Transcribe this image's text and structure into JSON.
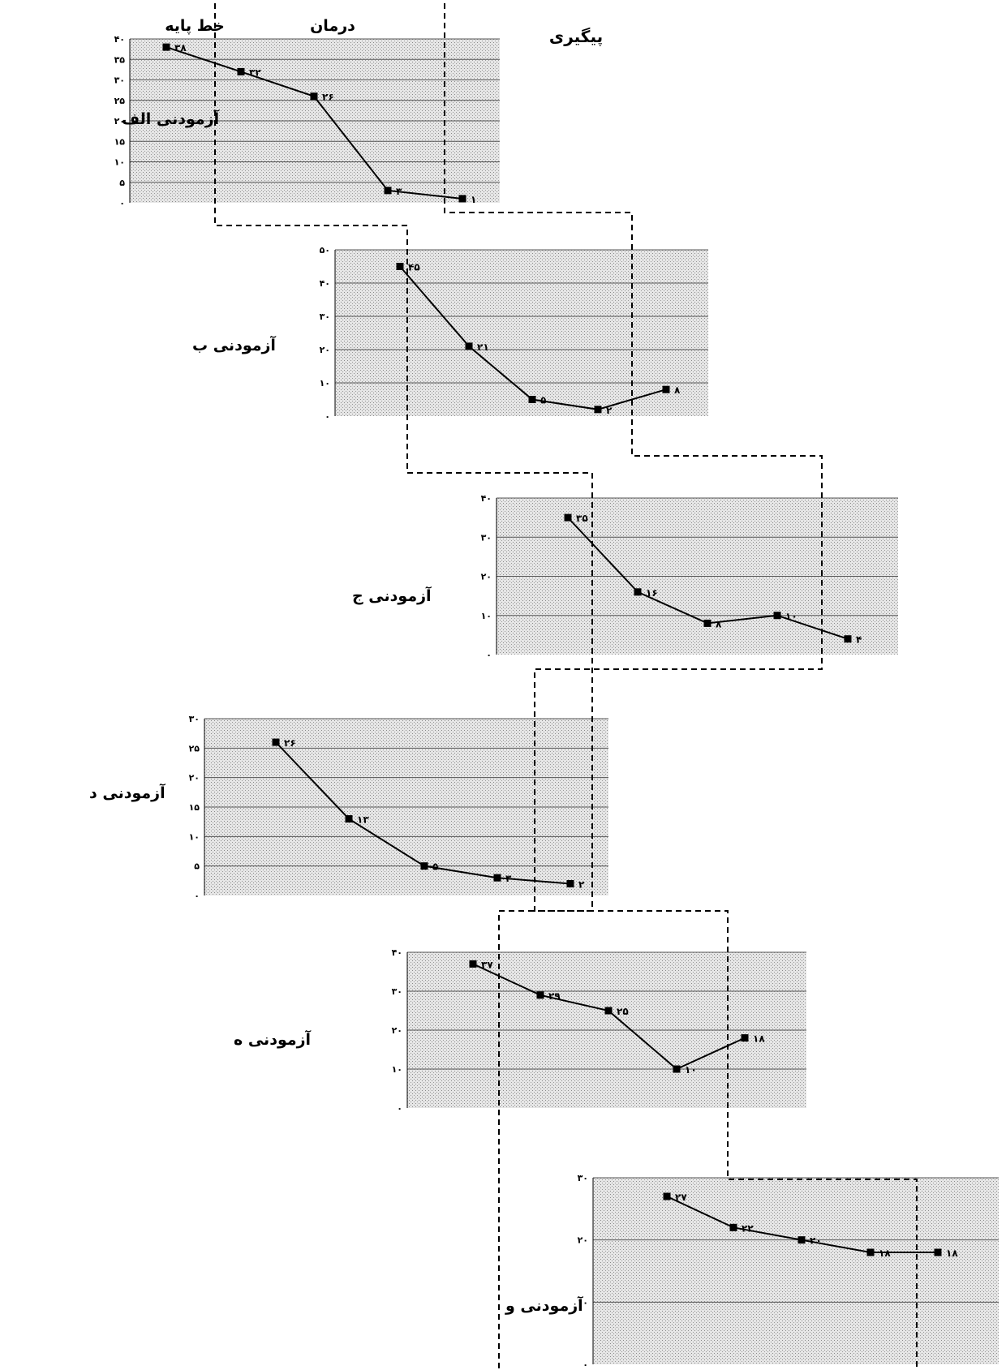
{
  "phase_labels": [
    "خط پایه",
    "درمان",
    "پیگیری"
  ],
  "colors": {
    "line": "#000000",
    "plot_bg": "#e2e2e2",
    "grid": "#555555",
    "divider": "#000000"
  },
  "chart_data": [
    {
      "type": "line",
      "subject": "آزمودنی الف",
      "ylim": [
        0,
        40
      ],
      "yticks": [
        "۰",
        "۵",
        "۱۰",
        "۱۵",
        "۲۰",
        "۲۵",
        "۳۰",
        "۳۵",
        "۴۰"
      ],
      "y": [
        38,
        32,
        26,
        3,
        1
      ],
      "data_labels": [
        "۳۸",
        "۳۲",
        "۲۶",
        "۳",
        "۱"
      ]
    },
    {
      "type": "line",
      "subject": "آزمودنی ب",
      "ylim": [
        0,
        50
      ],
      "yticks": [
        "۰",
        "۱۰",
        "۲۰",
        "۳۰",
        "۴۰",
        "۵۰"
      ],
      "y": [
        45,
        21,
        5,
        2,
        8
      ],
      "data_labels": [
        "۴۵",
        "۲۱",
        "۵",
        "۲",
        "۸"
      ]
    },
    {
      "type": "line",
      "subject": "آزمودنی ج",
      "ylim": [
        0,
        40
      ],
      "yticks": [
        "۰",
        "۱۰",
        "۲۰",
        "۳۰",
        "۴۰"
      ],
      "y": [
        35,
        16,
        8,
        10,
        4
      ],
      "data_labels": [
        "۳۵",
        "۱۶",
        "۸",
        "۱۰",
        "۴"
      ]
    },
    {
      "type": "line",
      "subject": "آزمودنی د",
      "ylim": [
        0,
        30
      ],
      "yticks": [
        "۰",
        "۵",
        "۱۰",
        "۱۵",
        "۲۰",
        "۲۵",
        "۳۰"
      ],
      "y": [
        26,
        13,
        5,
        3,
        2
      ],
      "data_labels": [
        "۲۶",
        "۱۳",
        "۵",
        "۳",
        "۲"
      ]
    },
    {
      "type": "line",
      "subject": "آزمودنی ه",
      "ylim": [
        0,
        40
      ],
      "yticks": [
        "۰",
        "۱۰",
        "۲۰",
        "۳۰",
        "۴۰"
      ],
      "y": [
        37,
        29,
        25,
        10,
        18
      ],
      "data_labels": [
        "۳۷",
        "۲۹",
        "۲۵",
        "۱۰",
        "۱۸"
      ]
    },
    {
      "type": "line",
      "subject": "آزمودنی و",
      "ylim": [
        0,
        30
      ],
      "yticks": [
        "۰",
        "۱۰",
        "۲۰",
        "۳۰"
      ],
      "y": [
        27,
        22,
        20,
        18,
        18
      ],
      "data_labels": [
        "۲۷",
        "۲۲",
        "۲۰",
        "۱۸",
        "۱۸"
      ]
    }
  ]
}
